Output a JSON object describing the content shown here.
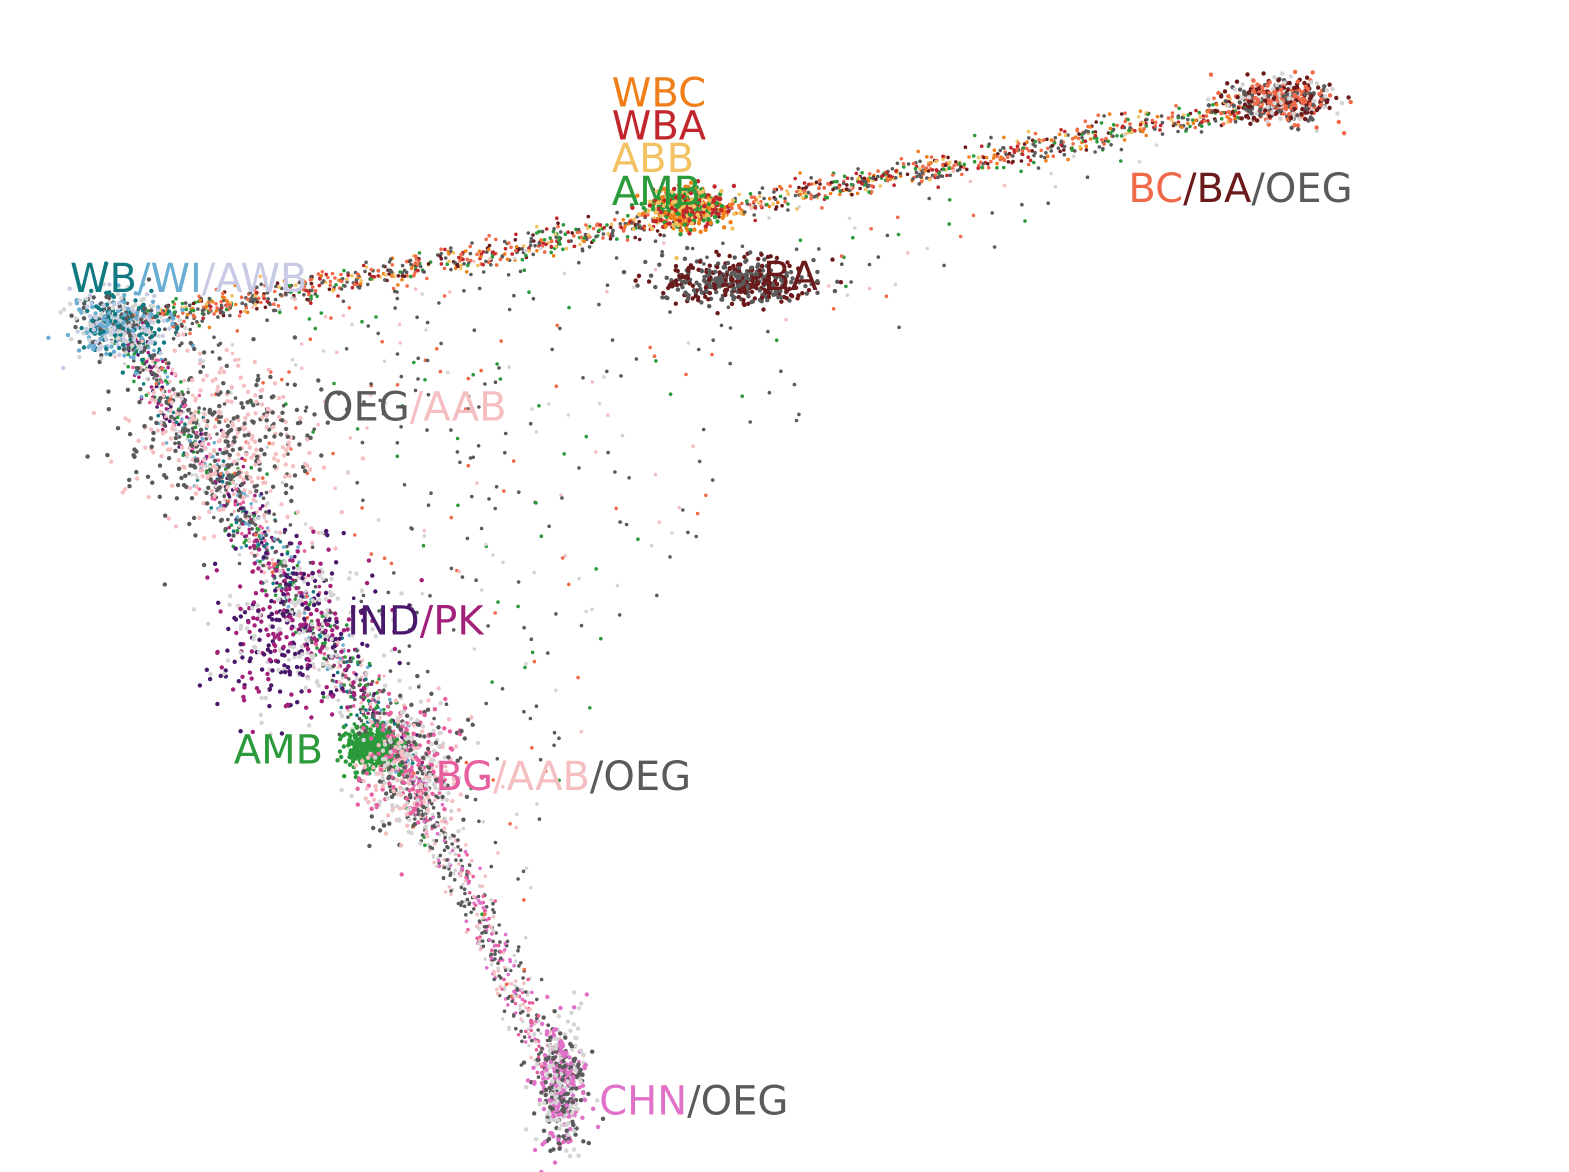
{
  "chart_data": {
    "type": "scatter",
    "title": "",
    "xlabel": "",
    "ylabel": "",
    "axes_visible": false,
    "grid": false,
    "xlim": [
      0,
      1
    ],
    "ylim": [
      0,
      1
    ],
    "colors": {
      "WBC": "#f07f1a",
      "WBA": "#c0262b",
      "ABB": "#f2c263",
      "AMB": "#2a9a3a",
      "WB": "#107a80",
      "WI": "#6aaed4",
      "AWB": "#c9cbe6",
      "OEG": "#5a5a5a",
      "AAB": "#f5bfc2",
      "BA": "#6b1a1c",
      "BC": "#f06a4a",
      "IND": "#4a186a",
      "PK": "#a3207a",
      "BG": "#e85fa0",
      "CHN": "#e070c8",
      "REF": "#d4d4d4"
    },
    "clusters": [
      {
        "name": "WB/WI/AWB",
        "x": 0.04,
        "y": 0.77,
        "spread": [
          0.02,
          0.015
        ],
        "groups": [
          "WB",
          "WI",
          "AWB",
          "OEG",
          "REF"
        ]
      },
      {
        "name": "BC/BA/OEG",
        "x": 0.96,
        "y": 0.98,
        "spread": [
          0.02,
          0.01
        ],
        "groups": [
          "BC",
          "BA",
          "OEG",
          "REF"
        ]
      },
      {
        "name": "WBC/WBA/ABB/AMB",
        "x": 0.49,
        "y": 0.88,
        "spread": [
          0.015,
          0.01
        ],
        "groups": [
          "WBA",
          "WBC",
          "ABB",
          "AMB"
        ]
      },
      {
        "name": "BA",
        "x": 0.53,
        "y": 0.81,
        "spread": [
          0.03,
          0.01
        ],
        "groups": [
          "BA",
          "OEG"
        ]
      },
      {
        "name": "OEG/AAB",
        "x": 0.12,
        "y": 0.66,
        "spread": [
          0.04,
          0.04
        ],
        "groups": [
          "OEG",
          "AAB"
        ]
      },
      {
        "name": "IND/PK",
        "x": 0.18,
        "y": 0.48,
        "spread": [
          0.03,
          0.04
        ],
        "groups": [
          "IND",
          "PK",
          "REF"
        ]
      },
      {
        "name": "AMB",
        "x": 0.24,
        "y": 0.37,
        "spread": [
          0.01,
          0.01
        ],
        "groups": [
          "AMB"
        ]
      },
      {
        "name": "BG/AAB/OEG",
        "x": 0.27,
        "y": 0.35,
        "spread": [
          0.02,
          0.03
        ],
        "groups": [
          "BG",
          "AAB",
          "OEG",
          "REF"
        ]
      },
      {
        "name": "CHN/OEG",
        "x": 0.39,
        "y": 0.05,
        "spread": [
          0.01,
          0.03
        ],
        "groups": [
          "CHN",
          "OEG",
          "REF"
        ]
      }
    ],
    "annotations": [
      {
        "x": 0.43,
        "y": 0.975,
        "anchor": "start",
        "parts": [
          {
            "text": "WBC",
            "group": "WBC"
          }
        ]
      },
      {
        "x": 0.43,
        "y": 0.944,
        "anchor": "start",
        "parts": [
          {
            "text": "WBA",
            "group": "WBA"
          }
        ]
      },
      {
        "x": 0.43,
        "y": 0.913,
        "anchor": "start",
        "parts": [
          {
            "text": "ABB",
            "group": "ABB"
          }
        ]
      },
      {
        "x": 0.43,
        "y": 0.882,
        "anchor": "start",
        "parts": [
          {
            "text": "AMB",
            "group": "AMB"
          }
        ]
      },
      {
        "x": 0.0,
        "y": 0.8,
        "anchor": "start",
        "parts": [
          {
            "text": "WB",
            "group": "WB"
          },
          {
            "text": "/WI",
            "group": "WI"
          },
          {
            "text": "/AWB",
            "group": "AWB"
          }
        ]
      },
      {
        "x": 0.84,
        "y": 0.885,
        "anchor": "start",
        "parts": [
          {
            "text": "BC",
            "group": "BC"
          },
          {
            "text": "/BA",
            "group": "BA"
          },
          {
            "text": "/OEG",
            "group": "OEG"
          }
        ]
      },
      {
        "x": 0.55,
        "y": 0.802,
        "anchor": "start",
        "parts": [
          {
            "text": "BA",
            "group": "BA"
          }
        ]
      },
      {
        "x": 0.2,
        "y": 0.679,
        "anchor": "start",
        "parts": [
          {
            "text": "OEG",
            "group": "OEG"
          },
          {
            "text": "/AAB",
            "group": "AAB"
          }
        ]
      },
      {
        "x": 0.22,
        "y": 0.477,
        "anchor": "start",
        "parts": [
          {
            "text": "IND",
            "group": "IND"
          },
          {
            "text": "/PK",
            "group": "PK"
          }
        ]
      },
      {
        "x": 0.13,
        "y": 0.355,
        "anchor": "start",
        "parts": [
          {
            "text": "AMB",
            "group": "AMB"
          }
        ]
      },
      {
        "x": 0.29,
        "y": 0.33,
        "anchor": "start",
        "parts": [
          {
            "text": "BG",
            "group": "BG"
          },
          {
            "text": "/AAB",
            "group": "AAB"
          },
          {
            "text": "/OEG",
            "group": "OEG"
          }
        ]
      },
      {
        "x": 0.42,
        "y": 0.024,
        "anchor": "start",
        "parts": [
          {
            "text": "CHN",
            "group": "CHN"
          },
          {
            "text": "/OEG",
            "group": "OEG"
          }
        ]
      }
    ]
  }
}
